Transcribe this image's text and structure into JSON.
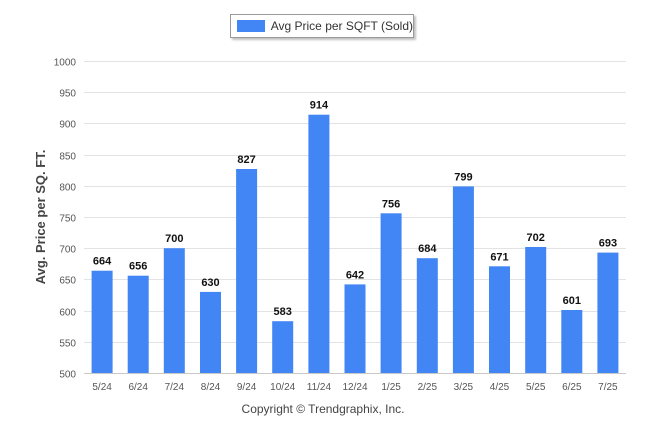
{
  "chart_data": {
    "type": "bar",
    "categories": [
      "5/24",
      "6/24",
      "7/24",
      "8/24",
      "9/24",
      "10/24",
      "11/24",
      "12/24",
      "1/25",
      "2/25",
      "3/25",
      "4/25",
      "5/25",
      "6/25",
      "7/25"
    ],
    "series": [
      {
        "name": "Avg Price per SQFT (Sold)",
        "values": [
          664,
          656,
          700,
          630,
          827,
          583,
          914,
          642,
          756,
          684,
          799,
          671,
          702,
          601,
          693
        ]
      }
    ],
    "ylabel": "Avg. Price per SQ. FT.",
    "xlabel": "",
    "ylim": [
      500,
      1000
    ],
    "yticks": [
      "500",
      "550",
      "600",
      "650",
      "700",
      "750",
      "800",
      "850",
      "900",
      "950",
      "1000"
    ],
    "grid": true,
    "legend_position": "top-center",
    "bar_color": "#4285f4",
    "footer": "Copyright © Trendgraphix, Inc."
  }
}
